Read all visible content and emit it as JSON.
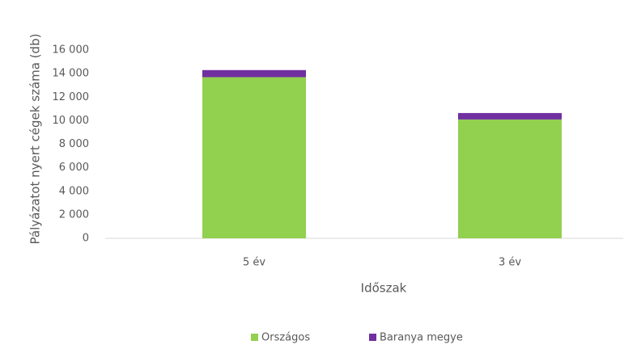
{
  "chart_data": {
    "type": "stacked_bar",
    "categories": [
      "5 év",
      "3 év"
    ],
    "series": [
      {
        "name": "Országos",
        "color": "#92d050",
        "values": [
          13700,
          10100
        ]
      },
      {
        "name": "Baranya megye",
        "color": "#7030a0",
        "values": [
          600,
          550
        ]
      }
    ],
    "ylim": [
      0,
      16000
    ],
    "yticks": [
      0,
      {
        "value": 2000,
        "label": "2 000"
      },
      {
        "value": 4000,
        "label": "4 000"
      },
      {
        "value": 6000,
        "label": "6 000"
      },
      {
        "value": 8000,
        "label": "8 000"
      },
      {
        "value": 10000,
        "label": "10 000"
      },
      {
        "value": 12000,
        "label": "12 000"
      },
      {
        "value": 14000,
        "label": "14 000"
      },
      {
        "value": 16000,
        "label": "16 000"
      }
    ],
    "x_label": "Időszak",
    "y_label": "Pályázatot nyert cégek száma (db)",
    "grid": false,
    "legend": "bottom"
  }
}
